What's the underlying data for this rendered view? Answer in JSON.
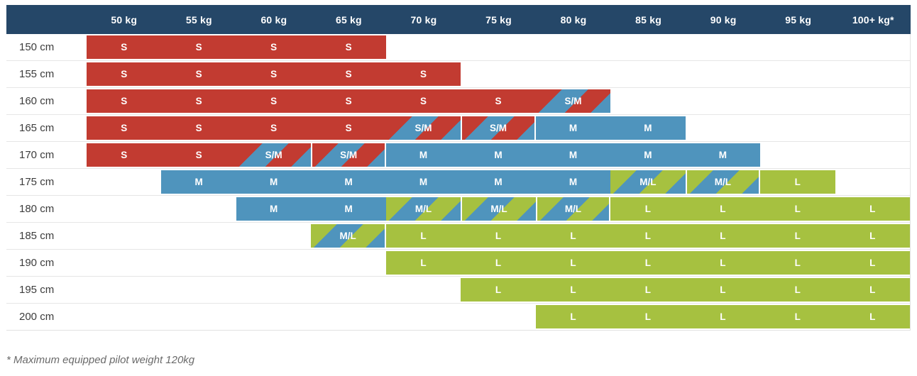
{
  "chart_data": {
    "type": "heatmap",
    "columns": [
      "50 kg",
      "55 kg",
      "60 kg",
      "65 kg",
      "70 kg",
      "75 kg",
      "80 kg",
      "85 kg",
      "90 kg",
      "95 kg",
      "100+ kg*"
    ],
    "rows": [
      "150 cm",
      "155 cm",
      "160 cm",
      "165 cm",
      "170 cm",
      "175 cm",
      "180 cm",
      "185 cm",
      "190 cm",
      "195 cm",
      "200 cm"
    ],
    "values": [
      [
        "S",
        "S",
        "S",
        "S",
        "",
        "",
        "",
        "",
        "",
        "",
        ""
      ],
      [
        "S",
        "S",
        "S",
        "S",
        "S",
        "",
        "",
        "",
        "",
        "",
        ""
      ],
      [
        "S",
        "S",
        "S",
        "S",
        "S",
        "S",
        "S/M",
        "",
        "",
        "",
        ""
      ],
      [
        "S",
        "S",
        "S",
        "S",
        "S/M",
        "S/M",
        "M",
        "M",
        "",
        "",
        ""
      ],
      [
        "S",
        "S",
        "S/M",
        "S/M",
        "M",
        "M",
        "M",
        "M",
        "M",
        "",
        ""
      ],
      [
        "",
        "M",
        "M",
        "M",
        "M",
        "M",
        "M",
        "M/L",
        "M/L",
        "L",
        ""
      ],
      [
        "",
        "",
        "M",
        "M",
        "M/L",
        "M/L",
        "M/L",
        "L",
        "L",
        "L",
        "L"
      ],
      [
        "",
        "",
        "",
        "M/L",
        "L",
        "L",
        "L",
        "L",
        "L",
        "L",
        "L"
      ],
      [
        "",
        "",
        "",
        "",
        "L",
        "L",
        "L",
        "L",
        "L",
        "L",
        "L"
      ],
      [
        "",
        "",
        "",
        "",
        "",
        "L",
        "L",
        "L",
        "L",
        "L",
        "L"
      ],
      [
        "",
        "",
        "",
        "",
        "",
        "",
        "L",
        "L",
        "L",
        "L",
        "L"
      ]
    ],
    "size_colors": {
      "S": "#c23b31",
      "M": "#4f94bd",
      "L": "#a6c140"
    },
    "header_background": "#254768",
    "footnote": "* Maximum equipped pilot weight 120kg"
  }
}
